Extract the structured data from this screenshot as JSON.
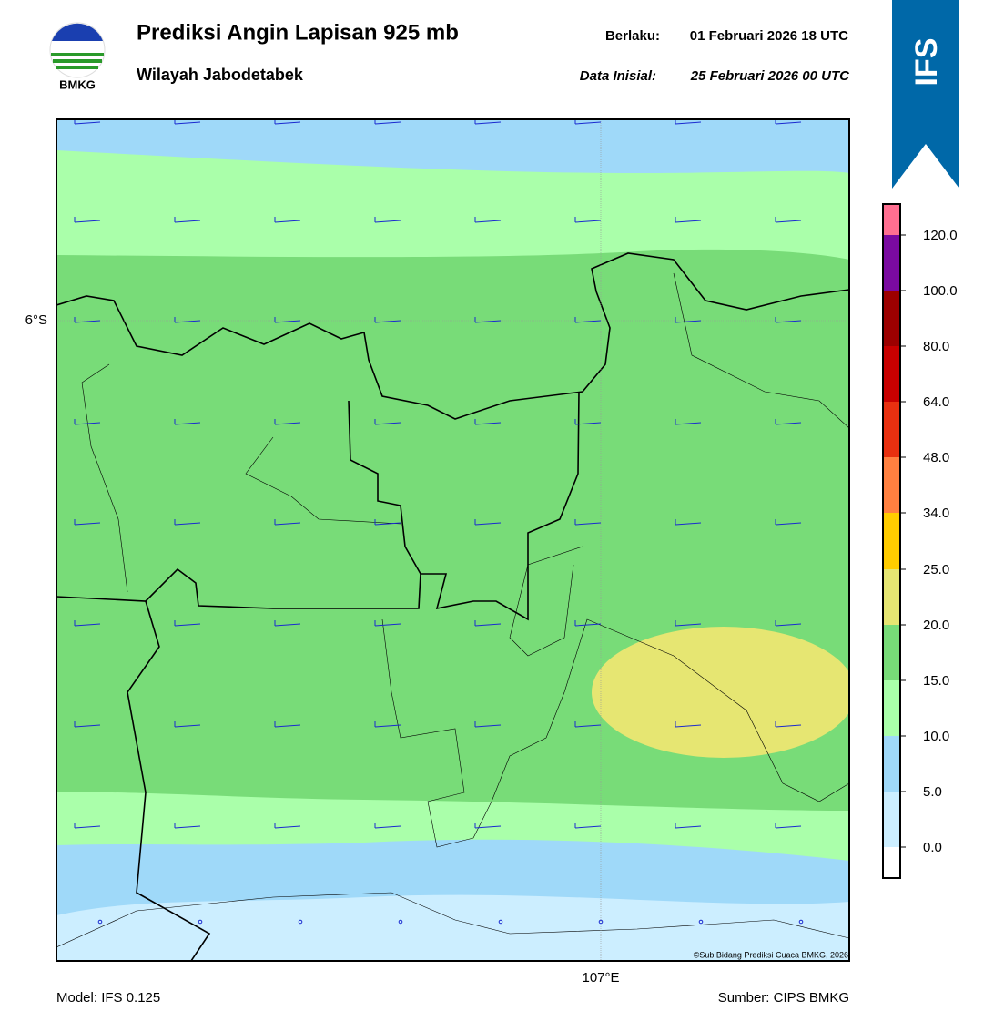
{
  "header": {
    "title": "Prediksi Angin Lapisan 925 mb",
    "subtitle": "Wilayah Jabodetabek",
    "valid_label": "Berlaku:",
    "valid_time": "01 Februari 2026 18 UTC",
    "init_label": "Data Inisial:",
    "init_time": "25 Februari 2026 00 UTC",
    "logo_text": "BMKG",
    "banner": "IFS"
  },
  "map": {
    "lat_label": "6°S",
    "lon_label": "107°E",
    "copyright": "©Sub Bidang Prediksi Cuaca BMKG, 2026"
  },
  "legend": {
    "ticks": [
      "120.0",
      "100.0",
      "80.0",
      "64.0",
      "48.0",
      "34.0",
      "25.0",
      "20.0",
      "15.0",
      "10.0",
      "5.0",
      "0.0"
    ],
    "colors": [
      "#ff6f91",
      "#7a0aa0",
      "#9c0000",
      "#c80000",
      "#e83010",
      "#ff8040",
      "#ffcc00",
      "#e6e672",
      "#78dc78",
      "#aaffaa",
      "#9fd9f9",
      "#cceeff",
      "#ffffff"
    ]
  },
  "footer": {
    "model": "Model: IFS 0.125",
    "source": "Sumber: CIPS BMKG"
  }
}
